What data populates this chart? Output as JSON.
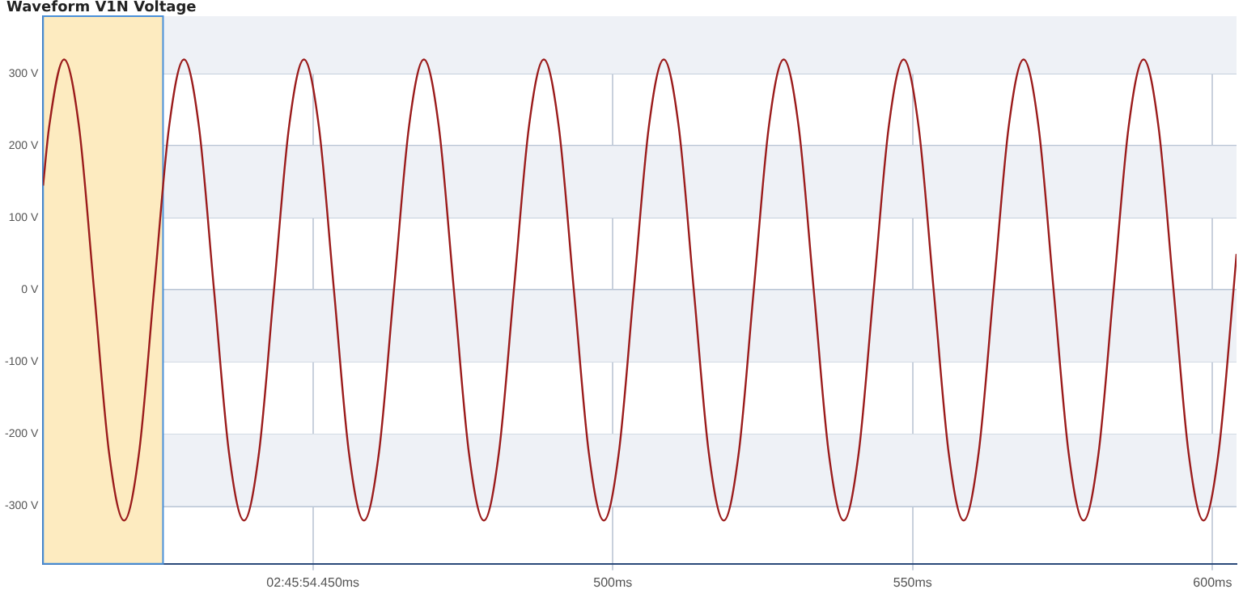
{
  "chart_data": {
    "type": "line",
    "title": "Waveform V1N Voltage",
    "x": [
      405,
      406,
      408.5,
      411,
      413.5,
      416,
      418.5,
      421,
      423.5,
      426,
      428.5,
      431,
      433.5,
      436,
      438.5,
      441,
      443.5,
      446,
      448.5,
      451,
      453.5,
      456,
      458.5,
      461,
      463.5,
      466,
      468.5,
      471,
      473.5,
      476,
      478.5,
      481,
      483.5,
      486,
      488.5,
      491,
      493.5,
      496,
      498.5,
      501,
      503.5,
      506,
      508.5,
      511,
      513.5,
      516,
      518.5,
      521,
      523.5,
      526,
      528.5,
      531,
      533.5,
      536,
      538.5,
      541,
      543.5,
      546,
      548.5,
      551,
      553.5,
      556,
      558.5,
      561,
      563.5,
      566,
      568.5,
      571,
      573.5,
      576,
      578.5,
      581,
      583.5,
      586,
      588.5,
      591,
      593.5,
      596,
      598.5,
      601,
      603.5,
      604
    ],
    "series": [
      {
        "color": "#9b1c1c",
        "values": [
          145,
          226,
          320,
          226,
          0,
          -226,
          -320,
          -226,
          0,
          226,
          320,
          226,
          0,
          -226,
          -320,
          -226,
          0,
          226,
          320,
          226,
          0,
          -226,
          -320,
          -226,
          0,
          226,
          320,
          226,
          0,
          -226,
          -320,
          -226,
          0,
          226,
          320,
          226,
          0,
          -226,
          -320,
          -226,
          0,
          226,
          320,
          226,
          0,
          -226,
          -320,
          -226,
          0,
          226,
          320,
          226,
          0,
          -226,
          -320,
          -226,
          0,
          226,
          320,
          226,
          0,
          -226,
          -320,
          -226,
          0,
          226,
          320,
          226,
          0,
          -226,
          -320,
          -226,
          0,
          226,
          320,
          226,
          0,
          -226,
          -320,
          -226,
          0,
          50
        ]
      }
    ],
    "xlim": [
      405,
      604
    ],
    "xticks": [
      {
        "value": 450,
        "label": "02:45:54.450ms"
      },
      {
        "value": 500,
        "label": "500ms"
      },
      {
        "value": 550,
        "label": "550ms"
      },
      {
        "value": 600,
        "label": "600ms"
      }
    ],
    "ylim": [
      -380,
      380
    ],
    "yticks": [
      {
        "value": -300,
        "label": "-300 V"
      },
      {
        "value": -200,
        "label": "-200 V"
      },
      {
        "value": -100,
        "label": "-100 V"
      },
      {
        "value": 0,
        "label": "0 V"
      },
      {
        "value": 100,
        "label": "100 V"
      },
      {
        "value": 200,
        "label": "200 V"
      },
      {
        "value": 300,
        "label": "300 V"
      }
    ],
    "bands": [
      {
        "axis": "x",
        "from": 405,
        "to": 425,
        "color": "#fdebc0"
      }
    ],
    "grid": true,
    "legend": false,
    "marker": "none",
    "line_style": "solid"
  }
}
